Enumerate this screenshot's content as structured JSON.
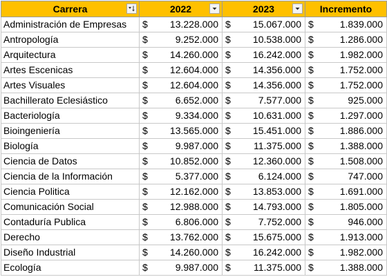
{
  "header_color": "#ffc000",
  "columns": {
    "carrera": "Carrera",
    "y2022": "2022",
    "y2023": "2023",
    "incremento": "Incremento"
  },
  "filter_icons": {
    "carrera": "sort-filter-applied-icon",
    "y2022": "dropdown-filter-icon",
    "y2023": "dropdown-filter-icon"
  },
  "currency_symbol": "$",
  "rows": [
    {
      "carrera": "Administración de Empresas",
      "y2022": "13.228.000",
      "y2023": "15.067.000",
      "incremento": "1.839.000"
    },
    {
      "carrera": "Antropología",
      "y2022": "9.252.000",
      "y2023": "10.538.000",
      "incremento": "1.286.000"
    },
    {
      "carrera": "Arquitectura",
      "y2022": "14.260.000",
      "y2023": "16.242.000",
      "incremento": "1.982.000"
    },
    {
      "carrera": "Artes Escenicas",
      "y2022": "12.604.000",
      "y2023": "14.356.000",
      "incremento": "1.752.000"
    },
    {
      "carrera": "Artes Visuales",
      "y2022": "12.604.000",
      "y2023": "14.356.000",
      "incremento": "1.752.000"
    },
    {
      "carrera": "Bachillerato Eclesiástico",
      "y2022": "6.652.000",
      "y2023": "7.577.000",
      "incremento": "925.000"
    },
    {
      "carrera": "Bacteriología",
      "y2022": "9.334.000",
      "y2023": "10.631.000",
      "incremento": "1.297.000"
    },
    {
      "carrera": "Bioingeniería",
      "y2022": "13.565.000",
      "y2023": "15.451.000",
      "incremento": "1.886.000"
    },
    {
      "carrera": "Biología",
      "y2022": "9.987.000",
      "y2023": "11.375.000",
      "incremento": "1.388.000"
    },
    {
      "carrera": "Ciencia de Datos",
      "y2022": "10.852.000",
      "y2023": "12.360.000",
      "incremento": "1.508.000"
    },
    {
      "carrera": "Ciencia de la Información",
      "y2022": "5.377.000",
      "y2023": "6.124.000",
      "incremento": "747.000"
    },
    {
      "carrera": "Ciencia Politica",
      "y2022": "12.162.000",
      "y2023": "13.853.000",
      "incremento": "1.691.000"
    },
    {
      "carrera": "Comunicación Social",
      "y2022": "12.988.000",
      "y2023": "14.793.000",
      "incremento": "1.805.000"
    },
    {
      "carrera": "Contaduría Publica",
      "y2022": "6.806.000",
      "y2023": "7.752.000",
      "incremento": "946.000"
    },
    {
      "carrera": "Derecho",
      "y2022": "13.762.000",
      "y2023": "15.675.000",
      "incremento": "1.913.000"
    },
    {
      "carrera": "Diseño Industrial",
      "y2022": "14.260.000",
      "y2023": "16.242.000",
      "incremento": "1.982.000"
    },
    {
      "carrera": "Ecología",
      "y2022": "9.987.000",
      "y2023": "11.375.000",
      "incremento": "1.388.000"
    }
  ]
}
